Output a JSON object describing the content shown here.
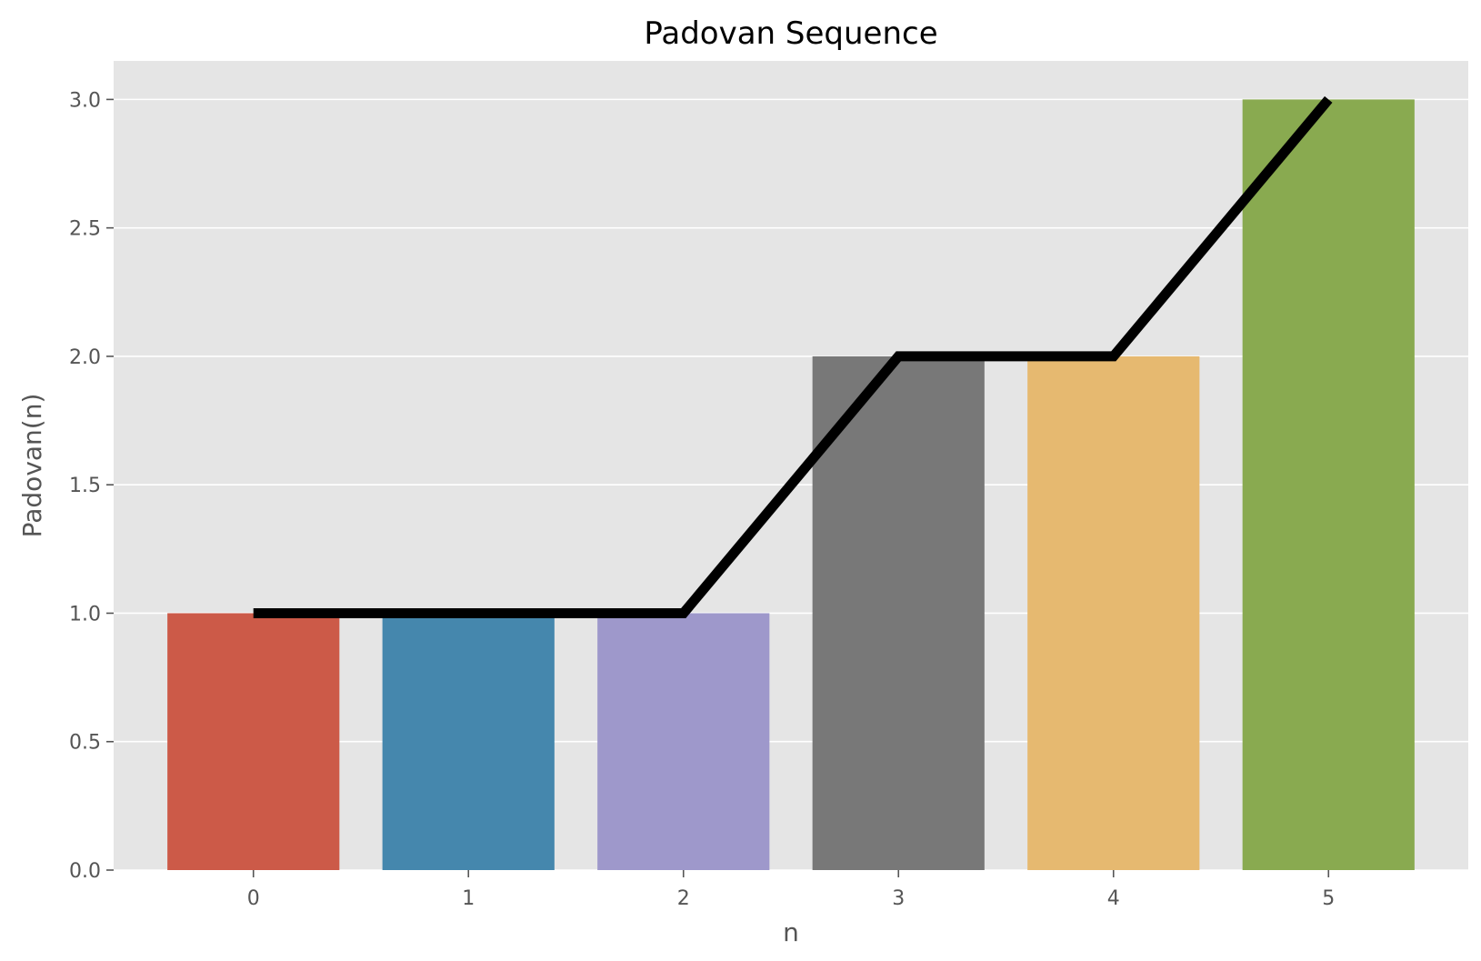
{
  "chart_data": {
    "type": "bar",
    "title": "Padovan Sequence",
    "xlabel": "n",
    "ylabel": "Padovan(n)",
    "categories": [
      "0",
      "1",
      "2",
      "3",
      "4",
      "5"
    ],
    "values": [
      1,
      1,
      1,
      2,
      2,
      3
    ],
    "bar_colors": [
      "#cc5a48",
      "#4587ad",
      "#9e98cb",
      "#787878",
      "#e6b970",
      "#89aa50"
    ],
    "line": {
      "values": [
        1,
        1,
        1,
        2,
        2,
        3
      ],
      "color": "#000000"
    },
    "ylim": [
      0,
      3.15
    ],
    "yticks": [
      "0.0",
      "0.5",
      "1.0",
      "1.5",
      "2.0",
      "2.5",
      "3.0"
    ],
    "grid": true,
    "legend": "none",
    "background": "#e5e5e5"
  }
}
